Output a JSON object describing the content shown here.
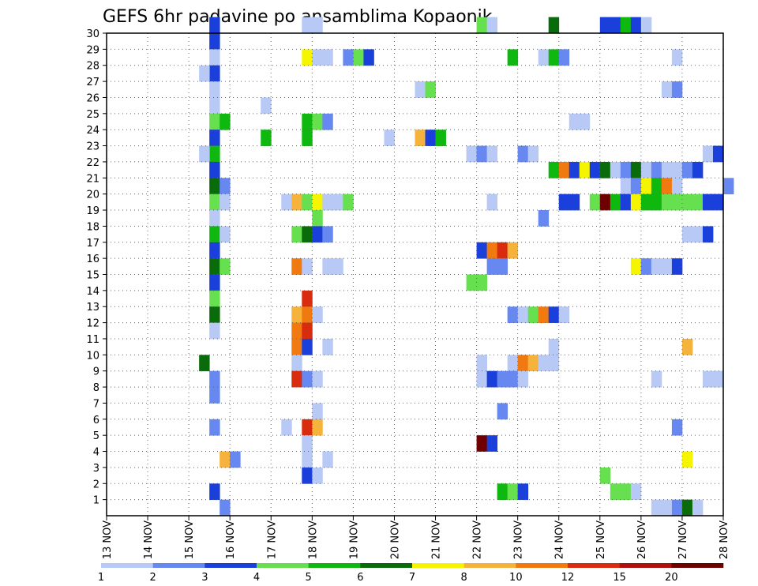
{
  "chart_data": {
    "type": "heatmap",
    "title": "GEFS 6hr padavine po ansamblima Kopaonik",
    "x_ticks": [
      "13 NOV",
      "14 NOV",
      "15 NOV",
      "16 NOV",
      "17 NOV",
      "18 NOV",
      "19 NOV",
      "20 NOV",
      "21 NOV",
      "22 NOV",
      "23 NOV",
      "24 NOV",
      "25 NOV",
      "26 NOV",
      "27 NOV",
      "28 NOV"
    ],
    "y_ticks": [
      1,
      2,
      3,
      4,
      5,
      6,
      7,
      8,
      9,
      10,
      11,
      12,
      13,
      14,
      15,
      16,
      17,
      18,
      19,
      20,
      21,
      22,
      23,
      24,
      25,
      26,
      27,
      28,
      29,
      30
    ],
    "ylim": [
      0,
      30
    ],
    "grid": true,
    "colorbar": {
      "colors": [
        "#b9c9f5",
        "#6688f0",
        "#1a3fdb",
        "#66e04f",
        "#0fb80f",
        "#0a6b0a",
        "#f5f500",
        "#f5b33b",
        "#f07a10",
        "#d92b0d",
        "#b00f0f",
        "#6e0000"
      ],
      "labels": [
        "1",
        "2",
        "3",
        "4",
        "5",
        "6",
        "7",
        "8",
        "10",
        "12",
        "15",
        "20"
      ]
    },
    "cells": [
      [
        "15/12",
        0,
        30,
        2
      ],
      [
        "15/12",
        0,
        29,
        2
      ],
      [
        "15/12",
        0,
        28,
        0
      ],
      [
        "15/12",
        0,
        27,
        2
      ],
      [
        "15/06",
        0,
        27,
        0
      ],
      [
        "15/12",
        0,
        26,
        0
      ],
      [
        "15/12",
        0,
        25,
        0
      ],
      [
        "15/12",
        0,
        24,
        3
      ],
      [
        "15/18",
        0,
        24,
        4
      ],
      [
        "15/12",
        0,
        23,
        2
      ],
      [
        "15/12",
        0,
        22,
        4
      ],
      [
        "15/06",
        0,
        22,
        0
      ],
      [
        "15/12",
        0,
        21,
        2
      ],
      [
        "15/12",
        0,
        20,
        5
      ],
      [
        "15/18",
        0,
        20,
        1
      ],
      [
        "15/12",
        0,
        19,
        3
      ],
      [
        "15/18",
        0,
        19,
        0
      ],
      [
        "15/12",
        0,
        18,
        0
      ],
      [
        "15/12",
        0,
        17,
        4
      ],
      [
        "15/18",
        0,
        17,
        0
      ],
      [
        "15/12",
        0,
        16,
        2
      ],
      [
        "15/12",
        0,
        15,
        5
      ],
      [
        "15/18",
        0,
        15,
        3
      ],
      [
        "15/12",
        0,
        14,
        2
      ],
      [
        "15/12",
        0,
        13,
        3
      ],
      [
        "15/12",
        0,
        12,
        5
      ],
      [
        "15/12",
        0,
        11,
        0
      ],
      [
        "15/06",
        0,
        9,
        5
      ],
      [
        "15/12",
        0,
        8,
        1
      ],
      [
        "15/12",
        0,
        7,
        1
      ],
      [
        "15/12",
        0,
        5,
        1
      ],
      [
        "15/18",
        0,
        3,
        7
      ],
      [
        "16/00",
        0,
        3,
        1
      ],
      [
        "15/12",
        0,
        1,
        2
      ],
      [
        "15/18",
        0,
        0,
        1
      ],
      [
        "16/18",
        0,
        25,
        0
      ],
      [
        "16/18",
        0,
        23,
        4
      ],
      [
        "17/18",
        0,
        30,
        0
      ],
      [
        "18/00",
        0,
        30,
        0
      ],
      [
        "17/18",
        0,
        28,
        6
      ],
      [
        "18/00",
        0,
        28,
        0
      ],
      [
        "18/06",
        0,
        28,
        0
      ],
      [
        "18/18",
        0,
        28,
        1
      ],
      [
        "19/00",
        0,
        28,
        3
      ],
      [
        "19/06",
        0,
        28,
        2
      ],
      [
        "17/18",
        0,
        24,
        4
      ],
      [
        "18/00",
        0,
        24,
        3
      ],
      [
        "18/06",
        0,
        24,
        1
      ],
      [
        "17/18",
        0,
        23,
        4
      ],
      [
        "17/06",
        0,
        19,
        0
      ],
      [
        "17/12",
        0,
        19,
        7
      ],
      [
        "17/18",
        0,
        19,
        3
      ],
      [
        "18/00",
        0,
        19,
        6
      ],
      [
        "18/06",
        0,
        19,
        0
      ],
      [
        "18/12",
        0,
        19,
        0
      ],
      [
        "18/18",
        0,
        19,
        3
      ],
      [
        "18/00",
        0,
        18,
        3
      ],
      [
        "17/12",
        0,
        17,
        3
      ],
      [
        "17/18",
        0,
        17,
        5
      ],
      [
        "18/00",
        0,
        17,
        2
      ],
      [
        "18/06",
        0,
        17,
        1
      ],
      [
        "17/12",
        0,
        15,
        8
      ],
      [
        "17/18",
        0,
        15,
        0
      ],
      [
        "18/06",
        0,
        15,
        0
      ],
      [
        "18/12",
        0,
        15,
        0
      ],
      [
        "17/18",
        0,
        13,
        9
      ],
      [
        "17/12",
        0,
        12,
        7
      ],
      [
        "17/18",
        0,
        12,
        8
      ],
      [
        "18/00",
        0,
        12,
        0
      ],
      [
        "17/12",
        0,
        11,
        8
      ],
      [
        "17/18",
        0,
        11,
        9
      ],
      [
        "17/12",
        0,
        10,
        8
      ],
      [
        "17/18",
        0,
        10,
        2
      ],
      [
        "18/06",
        0,
        10,
        0
      ],
      [
        "17/12",
        0,
        9,
        0
      ],
      [
        "17/12",
        0,
        8,
        9
      ],
      [
        "17/18",
        0,
        8,
        1
      ],
      [
        "18/00",
        0,
        8,
        0
      ],
      [
        "18/00",
        0,
        6,
        0
      ],
      [
        "17/06",
        0,
        5,
        0
      ],
      [
        "17/18",
        0,
        5,
        9
      ],
      [
        "18/00",
        0,
        5,
        7
      ],
      [
        "17/18",
        0,
        4,
        0
      ],
      [
        "17/18",
        0,
        3,
        0
      ],
      [
        "18/06",
        0,
        3,
        0
      ],
      [
        "17/18",
        0,
        2,
        2
      ],
      [
        "18/00",
        0,
        2,
        0
      ],
      [
        "20/12",
        0,
        26,
        0
      ],
      [
        "20/18",
        0,
        26,
        3
      ],
      [
        "19/18",
        0,
        23,
        0
      ],
      [
        "20/12",
        0,
        23,
        7
      ],
      [
        "20/18",
        0,
        23,
        2
      ],
      [
        "21/00",
        0,
        23,
        4
      ],
      [
        "22/00",
        0,
        30,
        3
      ],
      [
        "22/06",
        0,
        30,
        0
      ],
      [
        "23/18",
        0,
        30,
        5
      ],
      [
        "22/18",
        0,
        28,
        4
      ],
      [
        "23/12",
        0,
        28,
        0
      ],
      [
        "23/18",
        0,
        28,
        4
      ],
      [
        "24/00",
        0,
        28,
        1
      ],
      [
        "21/18",
        0,
        22,
        0
      ],
      [
        "22/00",
        0,
        22,
        1
      ],
      [
        "22/06",
        0,
        22,
        0
      ],
      [
        "23/00",
        0,
        22,
        1
      ],
      [
        "23/06",
        0,
        22,
        0
      ],
      [
        "22/06",
        0,
        19,
        0
      ],
      [
        "23/12",
        0,
        18,
        1
      ],
      [
        "22/00",
        0,
        16,
        2
      ],
      [
        "22/06",
        0,
        16,
        8
      ],
      [
        "22/12",
        0,
        16,
        9
      ],
      [
        "22/18",
        0,
        16,
        7
      ],
      [
        "22/06",
        0,
        15,
        1
      ],
      [
        "22/12",
        0,
        15,
        1
      ],
      [
        "21/18",
        0,
        14,
        3
      ],
      [
        "22/00",
        0,
        14,
        3
      ],
      [
        "22/18",
        0,
        12,
        1
      ],
      [
        "23/00",
        0,
        12,
        0
      ],
      [
        "23/06",
        0,
        12,
        3
      ],
      [
        "23/12",
        0,
        12,
        8
      ],
      [
        "23/18",
        0,
        12,
        2
      ],
      [
        "24/00",
        0,
        12,
        0
      ],
      [
        "23/18",
        0,
        10,
        0
      ],
      [
        "22/00",
        0,
        9,
        0
      ],
      [
        "22/18",
        0,
        9,
        0
      ],
      [
        "23/00",
        0,
        9,
        8
      ],
      [
        "23/06",
        0,
        9,
        7
      ],
      [
        "23/12",
        0,
        9,
        0
      ],
      [
        "23/18",
        0,
        9,
        0
      ],
      [
        "22/00",
        0,
        8,
        0
      ],
      [
        "22/06",
        0,
        8,
        2
      ],
      [
        "22/12",
        0,
        8,
        1
      ],
      [
        "22/18",
        0,
        8,
        1
      ],
      [
        "23/00",
        0,
        8,
        0
      ],
      [
        "22/12",
        0,
        6,
        1
      ],
      [
        "22/00",
        0,
        4,
        11
      ],
      [
        "22/06",
        0,
        4,
        2
      ],
      [
        "22/12",
        0,
        1,
        4
      ],
      [
        "22/18",
        0,
        1,
        3
      ],
      [
        "23/00",
        0,
        1,
        2
      ],
      [
        "24/06",
        0,
        24,
        0
      ],
      [
        "24/12",
        0,
        24,
        0
      ],
      [
        "26/12",
        0,
        26,
        0
      ],
      [
        "26/18",
        0,
        26,
        1
      ],
      [
        "26/18",
        0,
        28,
        0
      ],
      [
        "25/00",
        0,
        30,
        2
      ],
      [
        "25/06",
        0,
        30,
        2
      ],
      [
        "25/12",
        0,
        30,
        4
      ],
      [
        "25/18",
        0,
        30,
        2
      ],
      [
        "26/00",
        0,
        30,
        0
      ],
      [
        "27/12",
        0,
        22,
        0
      ],
      [
        "27/18",
        0,
        22,
        2
      ],
      [
        "23/18",
        0,
        21,
        4
      ],
      [
        "24/00",
        0,
        21,
        8
      ],
      [
        "24/06",
        0,
        21,
        2
      ],
      [
        "24/12",
        0,
        21,
        6
      ],
      [
        "24/18",
        0,
        21,
        2
      ],
      [
        "25/00",
        0,
        21,
        5
      ],
      [
        "25/06",
        0,
        21,
        0
      ],
      [
        "25/12",
        0,
        21,
        1
      ],
      [
        "25/18",
        0,
        21,
        5
      ],
      [
        "26/00",
        0,
        21,
        0
      ],
      [
        "26/06",
        0,
        21,
        1
      ],
      [
        "26/12",
        0,
        21,
        0
      ],
      [
        "26/18",
        0,
        21,
        0
      ],
      [
        "27/00",
        0,
        21,
        1
      ],
      [
        "27/06",
        0,
        21,
        2
      ],
      [
        "25/12",
        0,
        20,
        0
      ],
      [
        "25/18",
        0,
        20,
        1
      ],
      [
        "26/00",
        0,
        20,
        6
      ],
      [
        "26/06",
        0,
        20,
        4
      ],
      [
        "26/12",
        0,
        20,
        8
      ],
      [
        "26/18",
        0,
        20,
        0
      ],
      [
        "28/00",
        0,
        20,
        1
      ],
      [
        "24/00",
        0,
        19,
        2
      ],
      [
        "24/06",
        0,
        19,
        2
      ],
      [
        "24/18",
        0,
        19,
        3
      ],
      [
        "25/00",
        0,
        19,
        11
      ],
      [
        "25/06",
        0,
        19,
        4
      ],
      [
        "25/12",
        0,
        19,
        2
      ],
      [
        "25/18",
        0,
        19,
        6
      ],
      [
        "26/00",
        0,
        19,
        4
      ],
      [
        "26/06",
        0,
        19,
        4
      ],
      [
        "26/12",
        0,
        19,
        3
      ],
      [
        "26/18",
        0,
        19,
        3
      ],
      [
        "27/00",
        0,
        19,
        3
      ],
      [
        "27/06",
        0,
        19,
        3
      ],
      [
        "27/12",
        0,
        19,
        2
      ],
      [
        "27/18",
        0,
        19,
        2
      ],
      [
        "27/00",
        0,
        17,
        0
      ],
      [
        "27/06",
        0,
        17,
        0
      ],
      [
        "27/12",
        0,
        17,
        2
      ],
      [
        "25/18",
        0,
        15,
        6
      ],
      [
        "26/00",
        0,
        15,
        1
      ],
      [
        "26/06",
        0,
        15,
        0
      ],
      [
        "26/12",
        0,
        15,
        0
      ],
      [
        "26/18",
        0,
        15,
        2
      ],
      [
        "27/00",
        0,
        10,
        7
      ],
      [
        "26/06",
        0,
        8,
        0
      ],
      [
        "27/12",
        0,
        8,
        0
      ],
      [
        "27/18",
        0,
        8,
        0
      ],
      [
        "26/18",
        0,
        5,
        1
      ],
      [
        "27/00",
        0,
        3,
        6
      ],
      [
        "25/00",
        0,
        2,
        3
      ],
      [
        "25/06",
        0,
        1,
        3
      ],
      [
        "25/12",
        0,
        1,
        3
      ],
      [
        "25/18",
        0,
        1,
        0
      ],
      [
        "26/06",
        0,
        0,
        0
      ],
      [
        "26/12",
        0,
        0,
        0
      ],
      [
        "26/18",
        0,
        0,
        1
      ],
      [
        "27/00",
        0,
        0,
        5
      ],
      [
        "27/06",
        0,
        0,
        0
      ]
    ]
  }
}
